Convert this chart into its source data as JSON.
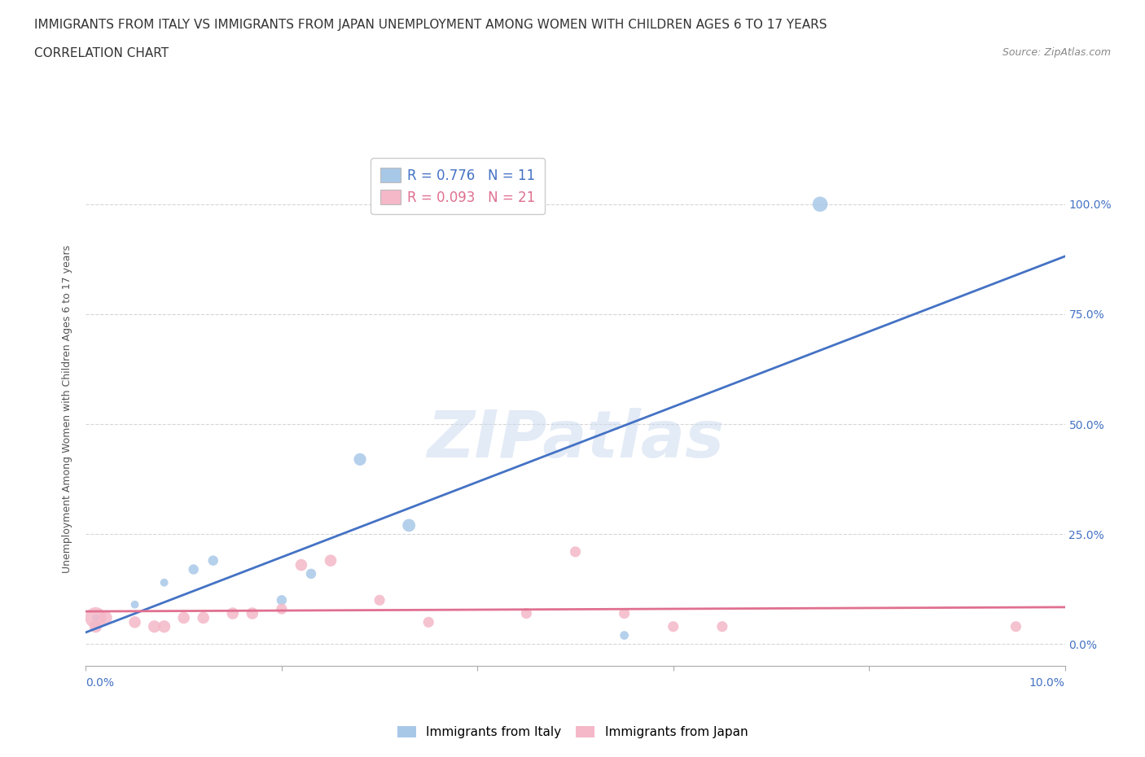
{
  "title_line1": "IMMIGRANTS FROM ITALY VS IMMIGRANTS FROM JAPAN UNEMPLOYMENT AMONG WOMEN WITH CHILDREN AGES 6 TO 17 YEARS",
  "title_line2": "CORRELATION CHART",
  "source": "Source: ZipAtlas.com",
  "ylabel": "Unemployment Among Women with Children Ages 6 to 17 years",
  "watermark": "ZIPatlas",
  "italy_r": 0.776,
  "italy_n": 11,
  "japan_r": 0.093,
  "japan_n": 21,
  "italy_color": "#a8c8e8",
  "italy_line_color": "#4472c4",
  "japan_color": "#f4b8c8",
  "japan_line_color": "#e07090",
  "italy_points_x": [
    0.1,
    0.5,
    0.8,
    1.1,
    1.3,
    2.0,
    2.3,
    2.8,
    3.3,
    5.5,
    7.5
  ],
  "italy_points_y": [
    6.0,
    9.0,
    14.0,
    17.0,
    19.0,
    10.0,
    16.0,
    42.0,
    27.0,
    2.0,
    100.0
  ],
  "japan_points_x": [
    0.1,
    0.1,
    0.2,
    0.5,
    0.7,
    0.8,
    1.0,
    1.2,
    1.5,
    1.7,
    2.0,
    2.2,
    2.5,
    3.0,
    3.5,
    4.5,
    5.0,
    5.5,
    6.0,
    6.5,
    9.5
  ],
  "japan_points_y": [
    6.0,
    4.0,
    6.0,
    5.0,
    4.0,
    4.0,
    6.0,
    6.0,
    7.0,
    7.0,
    8.0,
    18.0,
    19.0,
    10.0,
    5.0,
    7.0,
    21.0,
    7.0,
    4.0,
    4.0,
    4.0
  ],
  "italy_sizes": [
    40,
    50,
    50,
    80,
    80,
    80,
    80,
    120,
    130,
    60,
    180
  ],
  "japan_sizes": [
    350,
    120,
    140,
    110,
    120,
    120,
    110,
    110,
    110,
    110,
    90,
    110,
    110,
    90,
    90,
    90,
    90,
    90,
    90,
    90,
    90
  ],
  "xlim": [
    0.0,
    10.0
  ],
  "ylim": [
    -5.0,
    112.0
  ],
  "yticks": [
    0.0,
    25.0,
    50.0,
    75.0,
    100.0
  ],
  "ytick_labels": [
    "0.0%",
    "25.0%",
    "50.0%",
    "75.0%",
    "100.0%"
  ],
  "xtick_positions": [
    0.0,
    2.0,
    4.0,
    6.0,
    8.0,
    10.0
  ],
  "background_color": "#ffffff",
  "grid_color": "#cccccc",
  "title_fontsize": 11,
  "subtitle_fontsize": 11,
  "legend_fontsize": 12,
  "tick_label_color": "#4472c4"
}
